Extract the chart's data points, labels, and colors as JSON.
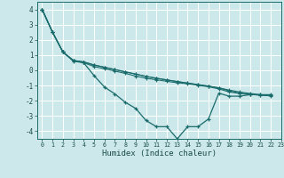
{
  "xlabel": "Humidex (Indice chaleur)",
  "xlim": [
    -0.5,
    23
  ],
  "ylim": [
    -4.5,
    4.5
  ],
  "xticks": [
    0,
    1,
    2,
    3,
    4,
    5,
    6,
    7,
    8,
    9,
    10,
    11,
    12,
    13,
    14,
    15,
    16,
    17,
    18,
    19,
    20,
    21,
    22,
    23
  ],
  "yticks": [
    -4,
    -3,
    -2,
    -1,
    0,
    1,
    2,
    3,
    4
  ],
  "bg_color": "#cce8ea",
  "line_color": "#1a6b6b",
  "grid_color": "#ffffff",
  "series": [
    [
      4.0,
      2.5,
      1.2,
      0.6,
      0.5,
      -0.35,
      -1.1,
      -1.55,
      -2.1,
      -2.5,
      -3.3,
      -3.7,
      -3.7,
      -4.5,
      -3.7,
      -3.7,
      -3.2,
      -1.5,
      -1.7,
      -1.7,
      -1.6,
      -1.6,
      -1.6
    ],
    [
      4.0,
      2.5,
      1.2,
      0.65,
      0.55,
      0.35,
      0.2,
      0.05,
      -0.1,
      -0.25,
      -0.4,
      -0.52,
      -0.63,
      -0.74,
      -0.84,
      -0.94,
      -1.04,
      -1.15,
      -1.35,
      -1.5,
      -1.58,
      -1.63,
      -1.65
    ],
    [
      4.0,
      2.5,
      1.2,
      0.65,
      0.55,
      0.35,
      0.2,
      0.05,
      -0.1,
      -0.25,
      -0.4,
      -0.52,
      -0.63,
      -0.74,
      -0.84,
      -0.94,
      -1.04,
      -1.15,
      -1.3,
      -1.42,
      -1.52,
      -1.6,
      -1.65
    ],
    [
      4.0,
      2.5,
      1.2,
      0.65,
      0.5,
      0.25,
      0.1,
      -0.05,
      -0.2,
      -0.38,
      -0.52,
      -0.62,
      -0.72,
      -0.82,
      -0.88,
      -0.98,
      -1.08,
      -1.22,
      -1.42,
      -1.52,
      -1.58,
      -1.63,
      -1.68
    ]
  ]
}
